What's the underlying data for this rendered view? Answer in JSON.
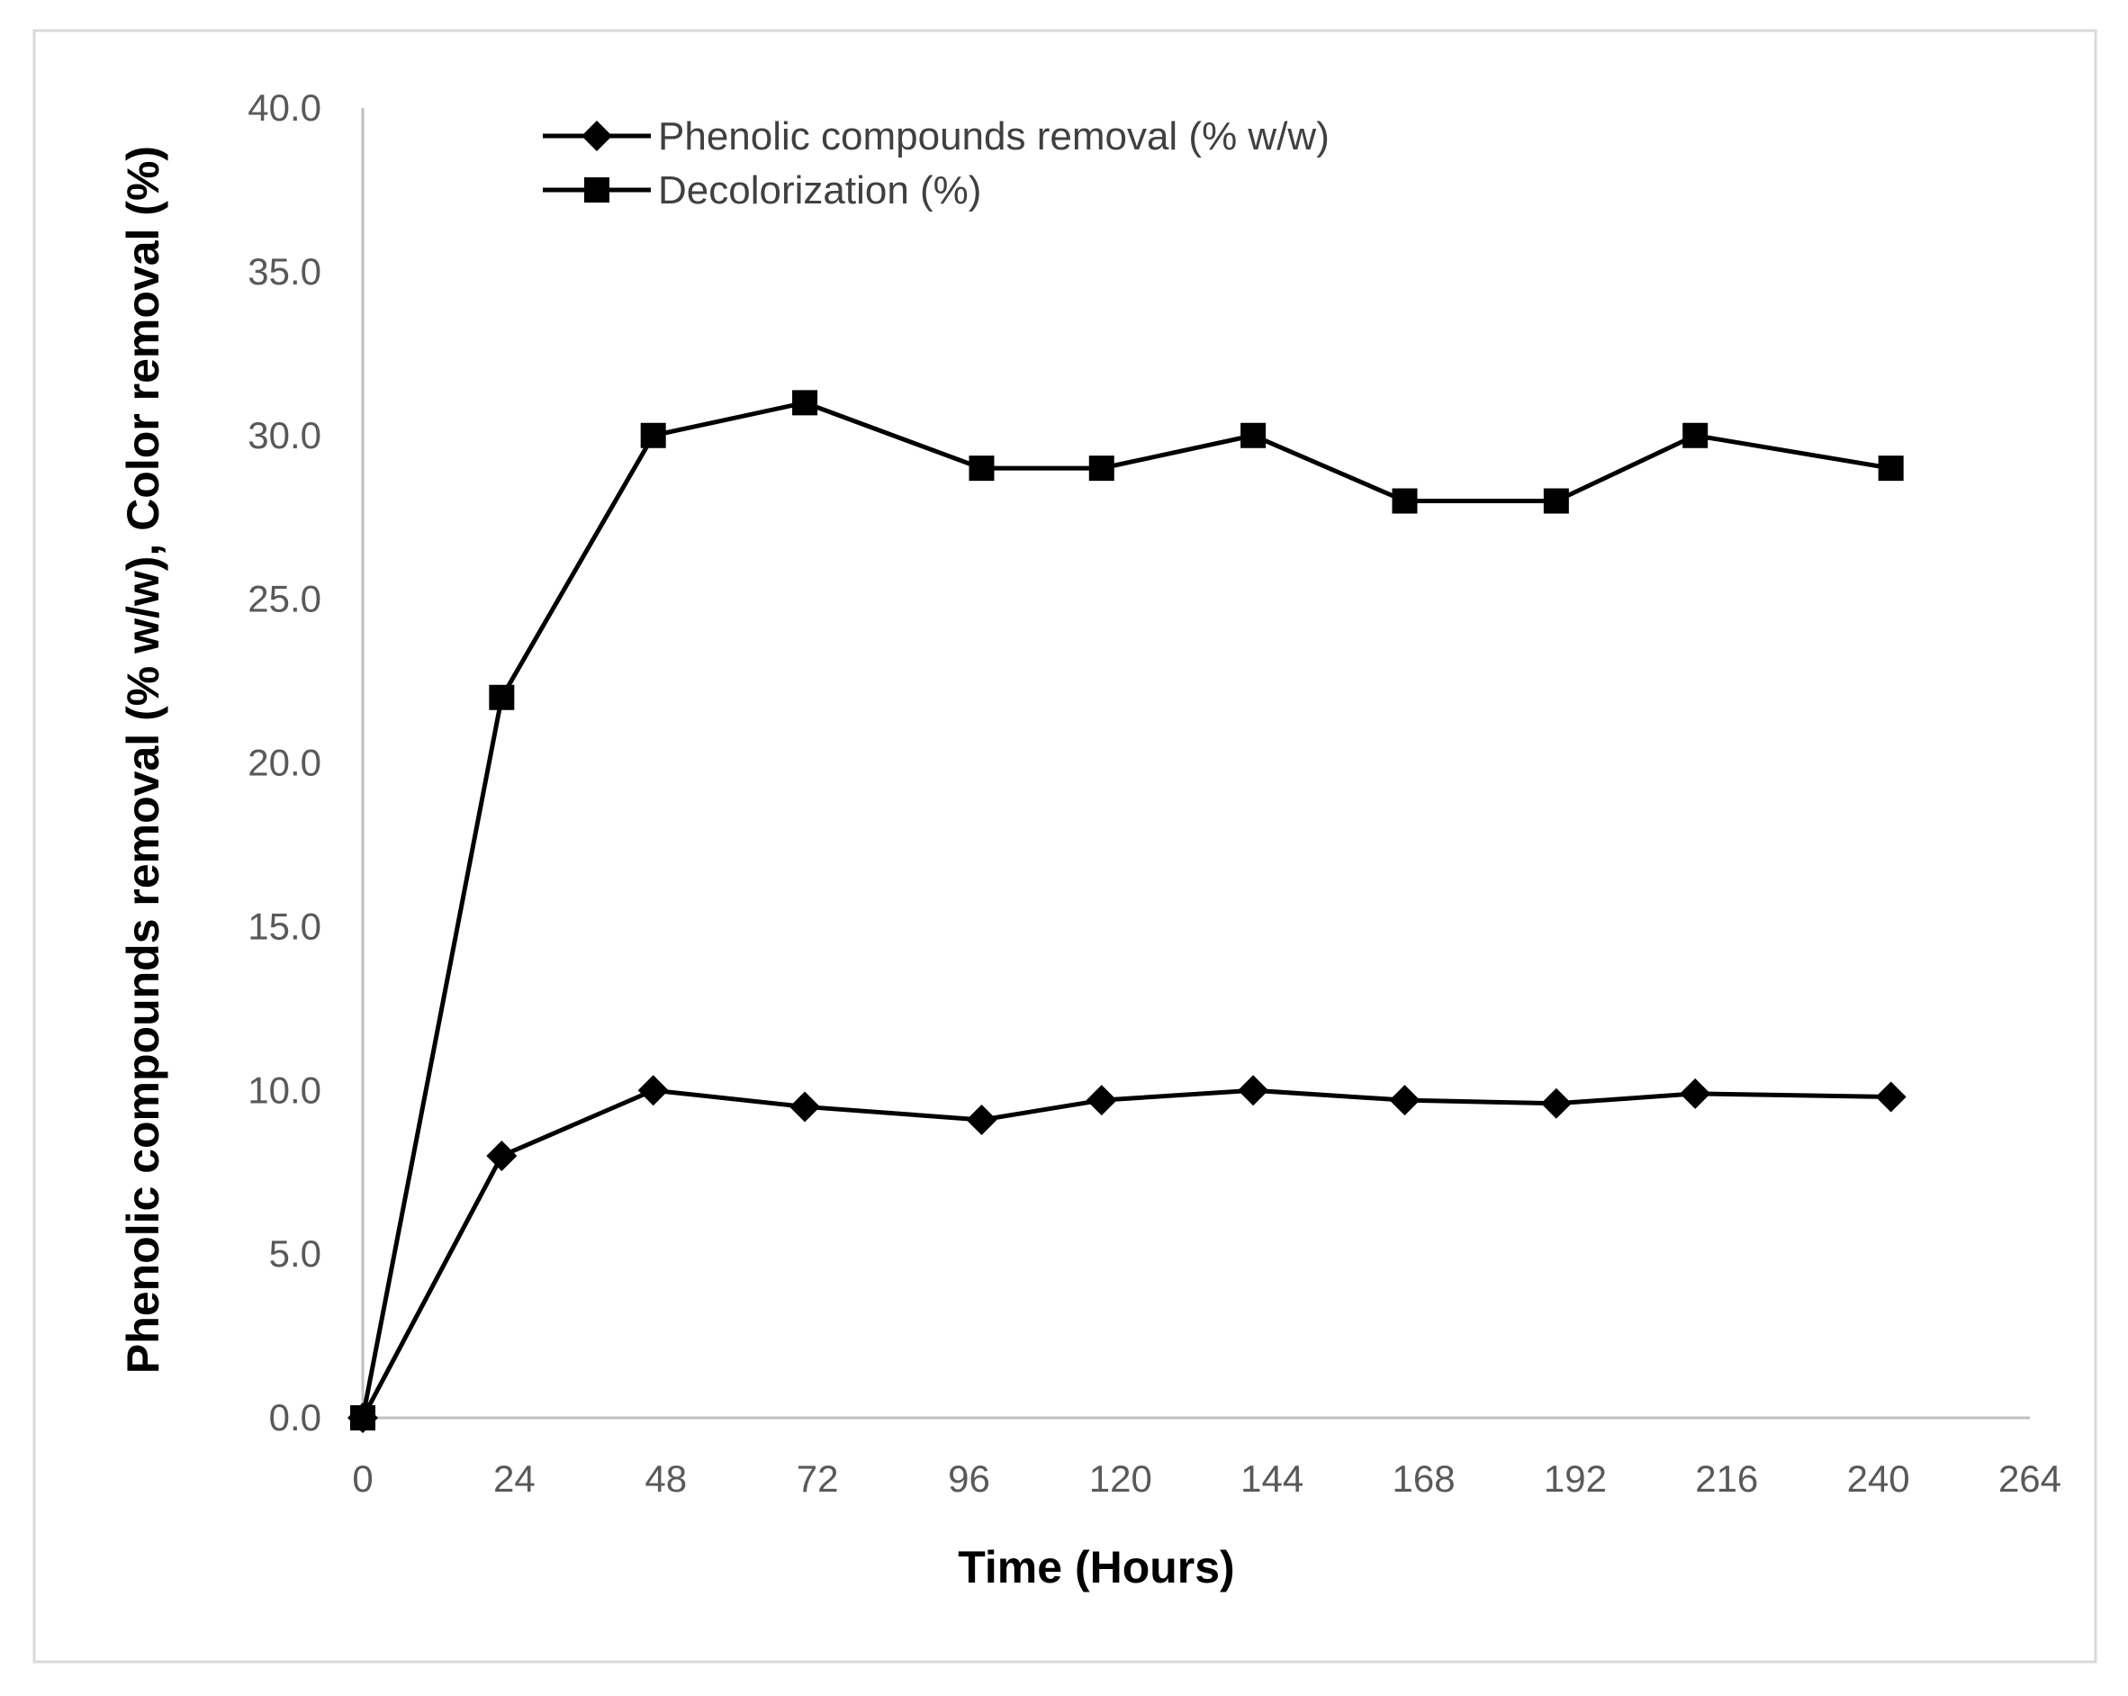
{
  "chart_data": {
    "type": "line",
    "title": "",
    "xlabel": "Time (Hours)",
    "ylabel": "Phenolic compounds removal (% w/w), Color removal (%)",
    "xlim": [
      0,
      264
    ],
    "ylim": [
      0,
      40
    ],
    "xticks": [
      0,
      24,
      48,
      72,
      96,
      120,
      144,
      168,
      192,
      216,
      240,
      264
    ],
    "yticks": [
      0.0,
      5.0,
      10.0,
      15.0,
      20.0,
      25.0,
      30.0,
      35.0,
      40.0
    ],
    "ytick_labels": [
      "0.0",
      "5.0",
      "10.0",
      "15.0",
      "20.0",
      "25.0",
      "30.0",
      "35.0",
      "40.0"
    ],
    "xtick_labels": [
      "0",
      "24",
      "48",
      "72",
      "96",
      "120",
      "144",
      "168",
      "192",
      "216",
      "240",
      "264"
    ],
    "grid": false,
    "legend_position": "top-left",
    "series": [
      {
        "name": "Phenolic compounds removal (% w/w)",
        "marker": "diamond",
        "color": "#000000",
        "x": [
          0,
          22,
          46,
          70,
          98,
          117,
          141,
          165,
          189,
          211,
          242
        ],
        "y": [
          0,
          8.0,
          10.0,
          9.5,
          9.1,
          9.7,
          10.0,
          9.7,
          9.6,
          9.9,
          9.8
        ]
      },
      {
        "name": "Decolorization (%)",
        "marker": "square",
        "color": "#000000",
        "x": [
          0,
          22,
          46,
          70,
          98,
          117,
          141,
          165,
          189,
          211,
          242
        ],
        "y": [
          0,
          22.0,
          30.0,
          31.0,
          29.0,
          29.0,
          30.0,
          28.0,
          28.0,
          30.0,
          29.0
        ]
      }
    ]
  }
}
